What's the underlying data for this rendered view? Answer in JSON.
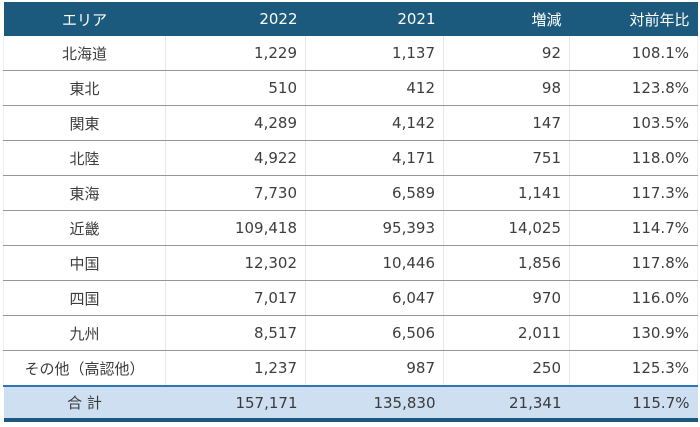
{
  "colors": {
    "header_bg": "#1b5a7c",
    "header_text": "#ffffff",
    "total_row_bg": "#cfdff2",
    "total_row_top_border": "#2e75b6",
    "table_bottom_border": "#1b5a7c",
    "row_separator": "#979797",
    "column_separator": "#e6e6e6",
    "body_text": "#3d3d3d"
  },
  "table": {
    "columns": [
      {
        "key": "area",
        "label": "エリア"
      },
      {
        "key": "y2022",
        "label": "2022"
      },
      {
        "key": "y2021",
        "label": "2021"
      },
      {
        "key": "diff",
        "label": "増減"
      },
      {
        "key": "yoy",
        "label": "対前年比"
      }
    ],
    "rows": [
      {
        "area": "北海道",
        "y2022": "1,229",
        "y2021": "1,137",
        "diff": "92",
        "yoy": "108.1%"
      },
      {
        "area": "東北",
        "y2022": "510",
        "y2021": "412",
        "diff": "98",
        "yoy": "123.8%"
      },
      {
        "area": "関東",
        "y2022": "4,289",
        "y2021": "4,142",
        "diff": "147",
        "yoy": "103.5%"
      },
      {
        "area": "北陸",
        "y2022": "4,922",
        "y2021": "4,171",
        "diff": "751",
        "yoy": "118.0%"
      },
      {
        "area": "東海",
        "y2022": "7,730",
        "y2021": "6,589",
        "diff": "1,141",
        "yoy": "117.3%"
      },
      {
        "area": "近畿",
        "y2022": "109,418",
        "y2021": "95,393",
        "diff": "14,025",
        "yoy": "114.7%"
      },
      {
        "area": "中国",
        "y2022": "12,302",
        "y2021": "10,446",
        "diff": "1,856",
        "yoy": "117.8%"
      },
      {
        "area": "四国",
        "y2022": "7,017",
        "y2021": "6,047",
        "diff": "970",
        "yoy": "116.0%"
      },
      {
        "area": "九州",
        "y2022": "8,517",
        "y2021": "6,506",
        "diff": "2,011",
        "yoy": "130.9%"
      },
      {
        "area": "その他（高認他）",
        "y2022": "1,237",
        "y2021": "987",
        "diff": "250",
        "yoy": "125.3%"
      }
    ],
    "total": {
      "area": "合 計",
      "y2022": "157,171",
      "y2021": "135,830",
      "diff": "21,341",
      "yoy": "115.7%"
    }
  },
  "chart_data": {
    "type": "table",
    "title": "",
    "columns": [
      "エリア",
      "2022",
      "2021",
      "増減",
      "対前年比"
    ],
    "rows": [
      [
        "北海道",
        1229,
        1137,
        92,
        "108.1%"
      ],
      [
        "東北",
        510,
        412,
        98,
        "123.8%"
      ],
      [
        "関東",
        4289,
        4142,
        147,
        "103.5%"
      ],
      [
        "北陸",
        4922,
        4171,
        751,
        "118.0%"
      ],
      [
        "東海",
        7730,
        6589,
        1141,
        "117.3%"
      ],
      [
        "近畿",
        109418,
        95393,
        14025,
        "114.7%"
      ],
      [
        "中国",
        12302,
        10446,
        1856,
        "117.8%"
      ],
      [
        "四国",
        7017,
        6047,
        970,
        "116.0%"
      ],
      [
        "九州",
        8517,
        6506,
        2011,
        "130.9%"
      ],
      [
        "その他（高認他）",
        1237,
        987,
        250,
        "125.3%"
      ],
      [
        "合 計",
        157171,
        135830,
        21341,
        "115.7%"
      ]
    ]
  }
}
